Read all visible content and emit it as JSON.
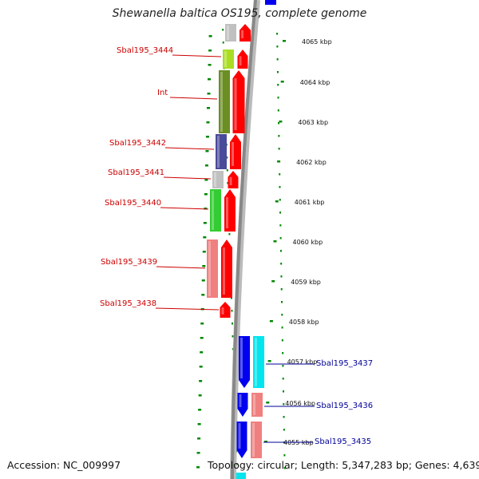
{
  "title": "Shewanella baltica OS195, complete genome",
  "footer": {
    "accession": "Accession: NC_009997",
    "summary": "Topology: circular; Length: 5,347,283 bp; Genes: 4,639"
  },
  "colors": {
    "forward_gene": "#ff0000",
    "reverse_gene": "#0000ee",
    "forward_label": "#cc0000",
    "reverse_label": "#000099",
    "backbone": "#888888",
    "ruler": "#008800"
  },
  "ticks": [
    {
      "label": "4065 kbp"
    },
    {
      "label": "4064 kbp"
    },
    {
      "label": "4063 kbp"
    },
    {
      "label": "4062 kbp"
    },
    {
      "label": "4061 kbp"
    },
    {
      "label": "4060 kbp"
    },
    {
      "label": "4059 kbp"
    },
    {
      "label": "4058 kbp"
    },
    {
      "label": "4057 kbp"
    },
    {
      "label": "4056 kbp"
    },
    {
      "label": "4055 kbp"
    }
  ],
  "genes": [
    {
      "label": "",
      "strand": "forward",
      "cog_color": "#c0c0c0"
    },
    {
      "label": "Sbal195_3444",
      "strand": "forward",
      "cog_color": "#aadd22"
    },
    {
      "label": "Int",
      "strand": "forward",
      "cog_color": "#6b8e23"
    },
    {
      "label": "Sbal195_3442",
      "strand": "forward",
      "cog_color": "#4a4a9a"
    },
    {
      "label": "Sbal195_3441",
      "strand": "forward",
      "cog_color": "#c0c0c0"
    },
    {
      "label": "Sbal195_3440",
      "strand": "forward",
      "cog_color": "#33cc33"
    },
    {
      "label": "Sbal195_3439",
      "strand": "forward",
      "cog_color": "#f08080"
    },
    {
      "label": "Sbal195_3438",
      "strand": "forward",
      "cog_color": ""
    },
    {
      "label": "Sbal195_3437",
      "strand": "reverse",
      "cog_color": "#00e5ee"
    },
    {
      "label": "Sbal195_3436",
      "strand": "reverse",
      "cog_color": "#f08080"
    },
    {
      "label": "Sbal195_3435",
      "strand": "reverse",
      "cog_color": "#f08080"
    }
  ]
}
